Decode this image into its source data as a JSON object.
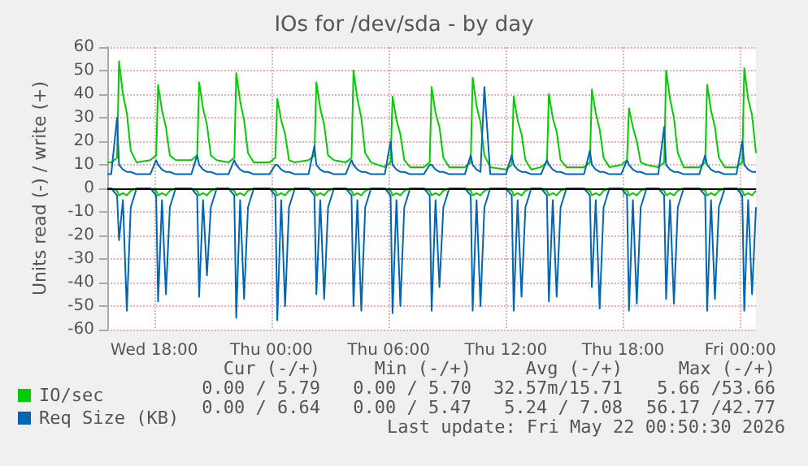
{
  "chart_data": {
    "type": "line",
    "title": "IOs for /dev/sda - by day",
    "ylabel": "Units read (-) / write (+)",
    "x": [
      "2026-05-20T15:36",
      "2026-05-20T15:48",
      "2026-05-20T16:06",
      "2026-05-20T16:12",
      "2026-05-20T16:24",
      "2026-05-20T16:36",
      "2026-05-20T16:48",
      "2026-05-20T17:06",
      "2026-05-20T17:48",
      "2026-05-20T18:06",
      "2026-05-20T18:12",
      "2026-05-20T18:24",
      "2026-05-20T18:36",
      "2026-05-20T18:48",
      "2026-05-20T19:06",
      "2026-05-20T19:54",
      "2026-05-20T20:12",
      "2026-05-20T20:18",
      "2026-05-20T20:30",
      "2026-05-20T20:42",
      "2026-05-20T20:54",
      "2026-05-20T21:12",
      "2026-05-20T21:48",
      "2026-05-20T22:06",
      "2026-05-20T22:12",
      "2026-05-20T22:24",
      "2026-05-20T22:36",
      "2026-05-20T22:48",
      "2026-05-20T23:06",
      "2026-05-20T23:54",
      "2026-05-21T00:12",
      "2026-05-21T00:18",
      "2026-05-21T00:30",
      "2026-05-21T00:42",
      "2026-05-21T00:54",
      "2026-05-21T01:12",
      "2026-05-21T01:54",
      "2026-05-21T02:12",
      "2026-05-21T02:18",
      "2026-05-21T02:30",
      "2026-05-21T02:42",
      "2026-05-21T02:54",
      "2026-05-21T03:12",
      "2026-05-21T03:48",
      "2026-05-21T04:06",
      "2026-05-21T04:12",
      "2026-05-21T04:24",
      "2026-05-21T04:36",
      "2026-05-21T04:48",
      "2026-05-21T05:06",
      "2026-05-21T05:48",
      "2026-05-21T06:06",
      "2026-05-21T06:12",
      "2026-05-21T06:24",
      "2026-05-21T06:36",
      "2026-05-21T06:48",
      "2026-05-21T07:06",
      "2026-05-21T07:48",
      "2026-05-21T08:06",
      "2026-05-21T08:12",
      "2026-05-21T08:24",
      "2026-05-21T08:36",
      "2026-05-21T08:48",
      "2026-05-21T09:06",
      "2026-05-21T09:54",
      "2026-05-21T10:12",
      "2026-05-21T10:18",
      "2026-05-21T10:30",
      "2026-05-21T10:42",
      "2026-05-21T10:54",
      "2026-05-21T11:12",
      "2026-05-21T12:00",
      "2026-05-21T12:18",
      "2026-05-21T12:24",
      "2026-05-21T12:36",
      "2026-05-21T12:48",
      "2026-05-21T13:00",
      "2026-05-21T13:18",
      "2026-05-21T13:48",
      "2026-05-21T14:06",
      "2026-05-21T14:12",
      "2026-05-21T14:24",
      "2026-05-21T14:36",
      "2026-05-21T14:48",
      "2026-05-21T15:06",
      "2026-05-21T16:00",
      "2026-05-21T16:18",
      "2026-05-21T16:24",
      "2026-05-21T16:36",
      "2026-05-21T16:48",
      "2026-05-21T17:00",
      "2026-05-21T17:18",
      "2026-05-21T17:54",
      "2026-05-21T18:12",
      "2026-05-21T18:18",
      "2026-05-21T18:30",
      "2026-05-21T18:42",
      "2026-05-21T18:54",
      "2026-05-21T19:12",
      "2026-05-21T19:48",
      "2026-05-21T20:06",
      "2026-05-21T20:12",
      "2026-05-21T20:24",
      "2026-05-21T20:36",
      "2026-05-21T20:48",
      "2026-05-21T21:06",
      "2026-05-21T21:54",
      "2026-05-21T22:12",
      "2026-05-21T22:18",
      "2026-05-21T22:30",
      "2026-05-21T22:42",
      "2026-05-21T22:54",
      "2026-05-21T23:12",
      "2026-05-21T23:48",
      "2026-05-22T00:06",
      "2026-05-22T00:12",
      "2026-05-22T00:24",
      "2026-05-22T00:36",
      "2026-05-22T00:48"
    ],
    "series": [
      {
        "name": "IO/sec",
        "color": "#00cc00",
        "values": [
          11,
          11,
          13,
          54,
          40,
          32,
          16,
          11,
          12,
          14,
          44,
          33,
          26,
          14,
          12,
          12,
          14,
          45,
          34,
          27,
          14,
          12,
          11,
          13,
          49,
          37,
          29,
          15,
          11,
          11,
          13,
          38,
          29,
          23,
          12,
          11,
          12,
          14,
          45,
          34,
          27,
          14,
          12,
          11,
          13,
          50,
          38,
          30,
          15,
          11,
          9,
          11,
          39,
          29,
          23,
          12,
          9,
          9,
          11,
          43,
          32,
          26,
          13,
          9,
          9,
          11,
          47,
          35,
          28,
          14,
          9,
          8,
          10,
          39,
          29,
          23,
          12,
          8,
          9,
          11,
          40,
          30,
          24,
          12,
          9,
          9,
          11,
          42,
          32,
          25,
          13,
          9,
          10,
          12,
          34,
          26,
          20,
          11,
          10,
          9,
          11,
          50,
          38,
          30,
          15,
          9,
          9,
          11,
          44,
          33,
          26,
          13,
          9,
          9,
          11,
          51,
          38,
          31,
          15
        ]
      },
      {
        "name": "Req Size (KB)",
        "color": "#0066b3",
        "values": [
          6,
          6,
          30,
          10,
          8,
          7,
          7,
          6,
          6,
          12,
          10,
          8,
          7,
          7,
          6,
          6,
          14,
          10,
          8,
          7,
          7,
          6,
          6,
          12,
          10,
          8,
          7,
          7,
          6,
          6,
          10,
          10,
          8,
          7,
          7,
          6,
          6,
          18,
          10,
          8,
          7,
          7,
          6,
          6,
          12,
          10,
          8,
          7,
          7,
          6,
          6,
          20,
          10,
          8,
          7,
          7,
          6,
          6,
          10,
          10,
          8,
          7,
          7,
          6,
          6,
          14,
          10,
          8,
          7,
          43,
          6,
          6,
          14,
          10,
          8,
          7,
          7,
          6,
          6,
          12,
          10,
          8,
          7,
          7,
          6,
          6,
          16,
          10,
          8,
          7,
          7,
          6,
          6,
          12,
          10,
          8,
          7,
          7,
          6,
          6,
          26,
          10,
          8,
          7,
          7,
          6,
          6,
          14,
          10,
          8,
          7,
          7,
          6,
          6,
          20,
          10,
          8,
          7,
          7
        ]
      },
      {
        "color": "#00cc00",
        "values": [
          0,
          0,
          -1,
          -3,
          -2,
          -3,
          -1,
          0,
          0,
          -1,
          -3,
          -2,
          -3,
          -1,
          0,
          0,
          -1,
          -3,
          -2,
          -3,
          -1,
          0,
          0,
          -1,
          -3,
          -2,
          -3,
          -1,
          0,
          0,
          -1,
          -3,
          -2,
          -3,
          -1,
          0,
          0,
          -1,
          -3,
          -2,
          -3,
          -1,
          0,
          0,
          -1,
          -3,
          -2,
          -3,
          -1,
          0,
          0,
          -1,
          -3,
          -2,
          -3,
          -1,
          0,
          0,
          -1,
          -3,
          -2,
          -3,
          -1,
          0,
          0,
          -1,
          -3,
          -2,
          -3,
          -1,
          0,
          0,
          -1,
          -3,
          -2,
          -3,
          -1,
          0,
          0,
          -1,
          -3,
          -2,
          -3,
          -1,
          0,
          0,
          -1,
          -3,
          -2,
          -3,
          -1,
          0,
          0,
          -1,
          -3,
          -2,
          -3,
          -1,
          0,
          0,
          -1,
          -3,
          -2,
          -3,
          -1,
          0,
          0,
          -1,
          -3,
          -2,
          -3,
          -1,
          0,
          0,
          -1,
          -3,
          -2,
          -3,
          -1
        ]
      },
      {
        "color": "#0066b3",
        "values": [
          0,
          0,
          -3,
          -22,
          -5,
          -52,
          -8,
          0,
          0,
          -3,
          -48,
          -5,
          -45,
          -8,
          0,
          0,
          -3,
          -46,
          -5,
          -37,
          -8,
          0,
          0,
          -3,
          -55,
          -5,
          -47,
          -8,
          0,
          0,
          -3,
          -56,
          -5,
          -50,
          -8,
          0,
          0,
          -3,
          -45,
          -5,
          -47,
          -8,
          0,
          0,
          -3,
          -50,
          -5,
          -52,
          -8,
          0,
          0,
          -3,
          -53,
          -5,
          -50,
          -8,
          0,
          0,
          -3,
          -52,
          -5,
          -42,
          -8,
          0,
          0,
          -3,
          -52,
          -5,
          -50,
          -8,
          0,
          0,
          -3,
          -52,
          -5,
          -46,
          -8,
          0,
          0,
          -3,
          -48,
          -5,
          -46,
          -8,
          0,
          0,
          -3,
          -42,
          -5,
          -51,
          -8,
          0,
          0,
          -3,
          -52,
          -5,
          -49,
          -8,
          0,
          0,
          -3,
          -47,
          -5,
          -49,
          -8,
          0,
          0,
          -3,
          -52,
          -5,
          -47,
          -8,
          0,
          0,
          -3,
          -52,
          -5,
          -45,
          -8
        ]
      }
    ],
    "xlim": [
      "2026-05-20T15:36",
      "2026-05-22T00:48"
    ],
    "xticks": [
      {
        "value": "2026-05-20T18:00",
        "label": "Wed 18:00"
      },
      {
        "value": "2026-05-21T00:00",
        "label": "Thu 00:00"
      },
      {
        "value": "2026-05-21T06:00",
        "label": "Thu 06:00"
      },
      {
        "value": "2026-05-21T12:00",
        "label": "Thu 12:00"
      },
      {
        "value": "2026-05-21T18:00",
        "label": "Thu 18:00"
      },
      {
        "value": "2026-05-22T00:00",
        "label": "Fri 00:00"
      }
    ],
    "ylim": [
      -60,
      60
    ],
    "yticks": [
      -60,
      -50,
      -40,
      -30,
      -20,
      -10,
      0,
      10,
      20,
      30,
      40,
      50,
      60
    ],
    "ref_lines": [
      {
        "axis": "y",
        "value": 0,
        "color": "#000000"
      }
    ],
    "grid": true,
    "legend": "bottom left",
    "marker": "none",
    "line_style": "solid",
    "annotations": [
      "Cur (-/+)",
      "Min (-/+)",
      "Avg (-/+)",
      "Max (-/+)",
      "0.00 / 5.79",
      "0.00 / 5.70",
      "32.57m/15.71",
      "5.66 /53.66",
      "0.00 / 6.64",
      "0.00 / 5.47",
      "5.24 / 7.08",
      "56.17 /42.77",
      "Last update: Fri May 22 00:50:30 2026"
    ]
  }
}
